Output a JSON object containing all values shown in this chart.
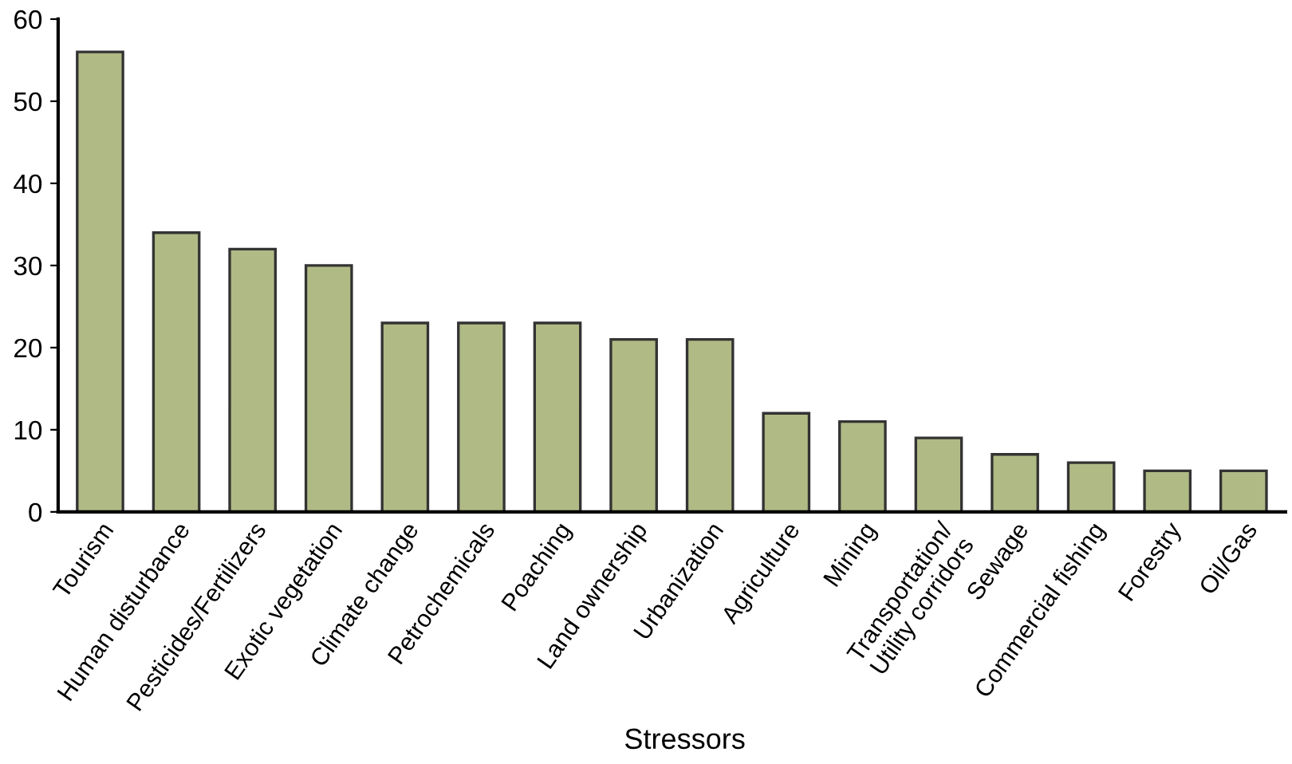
{
  "chart_data": {
    "type": "bar",
    "xlabel": "Stressors",
    "categories": [
      "Tourism",
      "Human disturbance",
      "Pesticides/Fertilizers",
      "Exotic vegetation",
      "Climate change",
      "Petrochemicals",
      "Poaching",
      "Land ownership",
      "Urbanization",
      "Agriculture",
      "Mining",
      "Transportation/\nUtility corridors",
      "Sewage",
      "Commercial fishing",
      "Forestry",
      "Oil/Gas"
    ],
    "values": [
      56,
      34,
      32,
      30,
      23,
      23,
      23,
      21,
      21,
      12,
      11,
      9,
      7,
      6,
      5,
      5
    ],
    "color": "#b0ba85",
    "ylim": [
      0,
      60
    ],
    "yticks": [
      0,
      10,
      20,
      30,
      40,
      50,
      60
    ],
    "grid": false
  }
}
